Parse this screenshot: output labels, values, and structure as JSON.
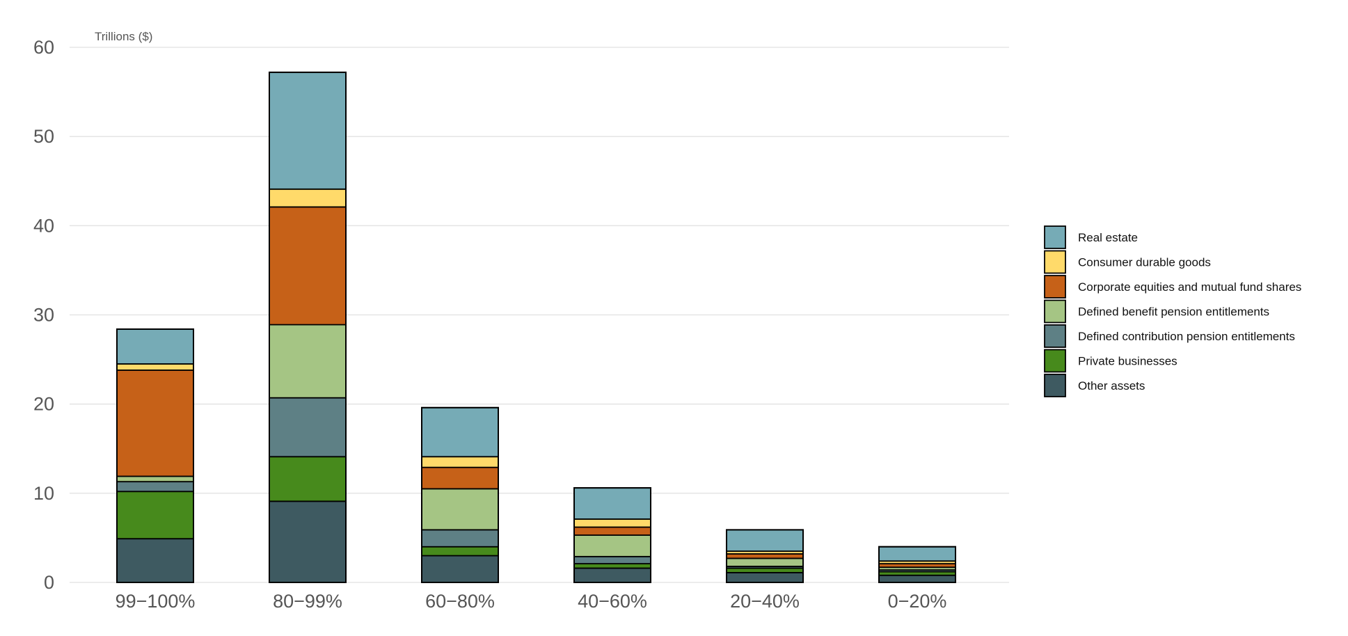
{
  "chart_data": {
    "type": "bar",
    "stacked": true,
    "title": "",
    "unit_label": "Trillions ($)",
    "xlabel": "",
    "ylabel": "",
    "ylim": [
      0,
      60
    ],
    "yticks": [
      "0",
      "10",
      "20",
      "30",
      "40",
      "50",
      "60"
    ],
    "grid": true,
    "legend_position": "right",
    "categories": [
      "99−100%",
      "80−99%",
      "60−80%",
      "40−60%",
      "20−40%",
      "0−20%"
    ],
    "series": [
      {
        "name": "Other assets",
        "color": "#3e5a61",
        "values": [
          4.9,
          9.1,
          3.0,
          1.6,
          1.1,
          0.8
        ]
      },
      {
        "name": "Private businesses",
        "color": "#478a1c",
        "values": [
          5.3,
          5.0,
          1.0,
          0.5,
          0.5,
          0.4
        ]
      },
      {
        "name": "Defined contribution pension entitlements",
        "color": "#5e8085",
        "values": [
          1.1,
          6.6,
          1.9,
          0.8,
          0.2,
          0.2
        ]
      },
      {
        "name": "Defined benefit pension entitlements",
        "color": "#a5c584",
        "values": [
          0.6,
          8.2,
          4.6,
          2.4,
          0.9,
          0.3
        ]
      },
      {
        "name": "Corporate equities and mutual fund shares",
        "color": "#c66118",
        "values": [
          11.9,
          13.2,
          2.4,
          0.9,
          0.5,
          0.4
        ]
      },
      {
        "name": "Consumer durable goods",
        "color": "#ffda6a",
        "values": [
          0.7,
          2.0,
          1.2,
          0.9,
          0.3,
          0.3
        ]
      },
      {
        "name": "Real estate",
        "color": "#76abb6",
        "values": [
          3.9,
          13.1,
          5.5,
          3.5,
          2.4,
          1.6
        ]
      }
    ]
  }
}
